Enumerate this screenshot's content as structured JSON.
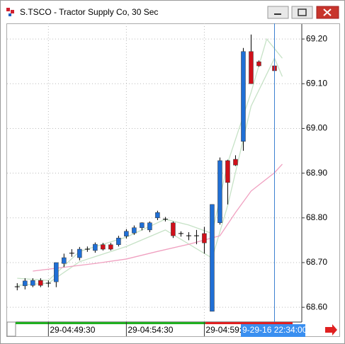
{
  "window": {
    "title": "S.TSCO - Tractor Supply Co, 30 Sec"
  },
  "chart_data": {
    "type": "candlestick",
    "x": [
      0,
      1,
      2,
      3,
      4,
      5,
      6,
      7,
      8,
      9,
      10,
      11,
      12,
      13,
      14,
      15,
      16,
      17,
      18,
      19,
      20,
      21,
      22,
      23,
      24,
      25,
      26,
      27,
      28,
      29,
      30,
      31,
      33
    ],
    "open": [
      68.646,
      68.648,
      68.649,
      68.66,
      68.654,
      68.657,
      68.698,
      68.721,
      68.711,
      68.73,
      68.727,
      68.74,
      68.74,
      68.74,
      68.759,
      68.766,
      68.778,
      68.773,
      68.8,
      68.797,
      68.789,
      68.765,
      68.76,
      68.76,
      68.765,
      68.591,
      68.789,
      68.928,
      68.931,
      68.971,
      69.172,
      69.149,
      69.14
    ],
    "high": [
      68.654,
      68.665,
      68.665,
      68.665,
      68.66,
      68.7,
      68.72,
      68.73,
      68.735,
      68.736,
      68.745,
      68.744,
      68.744,
      68.76,
      68.775,
      68.783,
      68.79,
      68.792,
      68.816,
      68.802,
      68.792,
      68.77,
      68.768,
      68.773,
      68.78,
      68.83,
      68.935,
      68.93,
      68.94,
      69.18,
      69.21,
      69.152,
      69.143
    ],
    "low": [
      68.638,
      68.64,
      68.645,
      68.645,
      68.645,
      68.645,
      68.69,
      68.713,
      68.705,
      68.724,
      68.722,
      68.727,
      68.727,
      68.736,
      68.754,
      68.762,
      68.772,
      68.768,
      68.795,
      68.792,
      68.755,
      68.758,
      68.75,
      68.741,
      68.72,
      68.591,
      68.785,
      68.83,
      68.916,
      68.95,
      69.1,
      69.138,
      69.126
    ],
    "close": [
      68.646,
      68.659,
      68.66,
      68.649,
      68.654,
      68.7,
      68.711,
      68.721,
      68.73,
      68.73,
      68.741,
      68.73,
      68.73,
      68.755,
      68.77,
      68.778,
      68.789,
      68.789,
      68.812,
      68.797,
      68.76,
      68.765,
      68.76,
      68.76,
      68.744,
      68.83,
      68.928,
      68.879,
      68.918,
      69.172,
      69.1,
      69.14,
      69.129
    ],
    "up_color": "#1f6fd6",
    "down_color": "#d0101a",
    "overlays": [
      {
        "color": "#c6e2c6",
        "x": [
          0,
          4,
          8,
          14,
          19,
          22,
          25,
          27,
          30,
          32,
          34
        ],
        "values": [
          68.665,
          68.66,
          68.725,
          68.757,
          68.797,
          68.784,
          68.765,
          68.923,
          69.081,
          69.2,
          69.157
        ]
      },
      {
        "color": "#c6e2c6",
        "x": [
          0,
          4,
          8,
          14,
          19,
          25,
          27,
          30,
          33,
          34
        ],
        "values": [
          68.649,
          68.654,
          68.702,
          68.736,
          68.773,
          68.71,
          68.828,
          69.05,
          69.157,
          69.116
        ]
      },
      {
        "color": "#f0a0c0",
        "x": [
          2,
          10,
          14,
          18,
          22,
          26,
          28,
          30,
          33,
          34
        ],
        "values": [
          68.681,
          68.698,
          68.708,
          68.725,
          68.741,
          68.76,
          68.812,
          68.86,
          68.901,
          68.92
        ]
      }
    ],
    "xlim": [
      -1.3,
      36.5
    ],
    "xticks": [
      {
        "value": 4,
        "label": "29-04:49:30"
      },
      {
        "value": 14,
        "label": "29-04:54:30"
      },
      {
        "value": 24,
        "label": "29-04:59:30"
      }
    ],
    "crosshair": {
      "value": 33,
      "label": "9-29-16 22:34:00"
    },
    "ylim": [
      68.567,
      69.235
    ],
    "yticks": [
      {
        "value": 68.6,
        "label": "68.60"
      },
      {
        "value": 68.7,
        "label": "68.70"
      },
      {
        "value": 68.8,
        "label": "68.80"
      },
      {
        "value": 68.9,
        "label": "68.90"
      },
      {
        "value": 69.0,
        "label": "69.00"
      },
      {
        "value": 69.1,
        "label": "69.10"
      },
      {
        "value": 69.2,
        "label": "69.20"
      }
    ],
    "grid": true
  }
}
